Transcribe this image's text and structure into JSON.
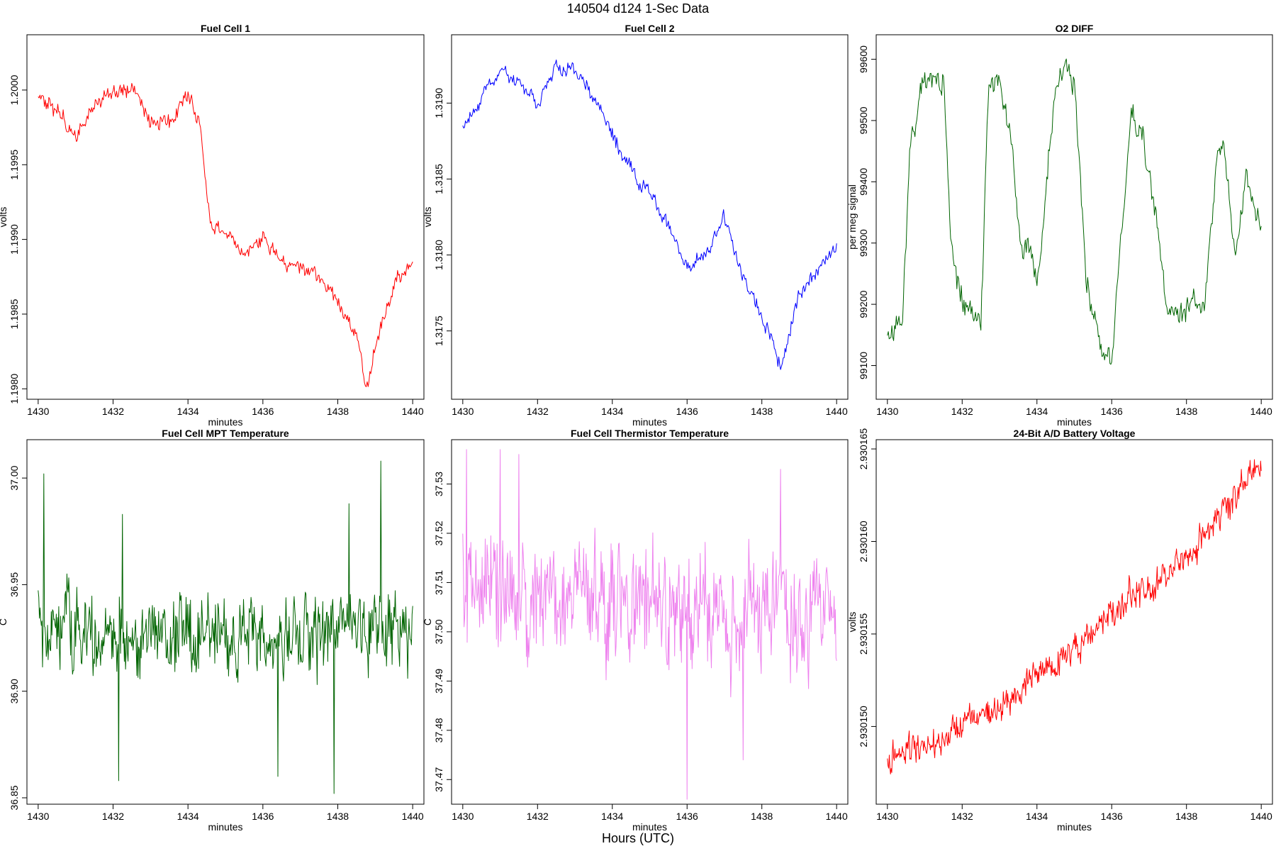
{
  "figure": {
    "title": "140504   d124   1-Sec Data",
    "outer_xlabel": "Hours (UTC)"
  },
  "chart_data": [
    {
      "type": "line",
      "title": "Fuel Cell 1",
      "xlabel": "minutes",
      "ylabel": "volts",
      "color": "#ff0000",
      "xlim": [
        1429.7,
        1440.3
      ],
      "ylim": [
        1.19793,
        1.20037
      ],
      "xticks": [
        1430,
        1432,
        1434,
        1436,
        1438,
        1440
      ],
      "yticks": [
        1.198,
        1.1985,
        1.199,
        1.1995,
        1.2
      ],
      "ytick_decimals": 4,
      "series": [
        {
          "x": [
            1430,
            1430.5,
            1431,
            1431.5,
            1432,
            1432.5,
            1433,
            1433.5,
            1434,
            1434.3,
            1434.6,
            1435,
            1435.5,
            1436,
            1436.5,
            1437,
            1437.5,
            1438,
            1438.5,
            1438.8,
            1439,
            1439.5,
            1440
          ],
          "values": [
            1.19995,
            1.19985,
            1.1997,
            1.1999,
            1.19998,
            1.2,
            1.19978,
            1.1998,
            1.19997,
            1.1998,
            1.1991,
            1.19905,
            1.1989,
            1.199,
            1.19885,
            1.1988,
            1.19875,
            1.1986,
            1.19835,
            1.198,
            1.1983,
            1.1987,
            1.19885
          ],
          "noise": 5e-05,
          "steps": 420
        }
      ]
    },
    {
      "type": "line",
      "title": "Fuel Cell 2",
      "xlabel": "minutes",
      "ylabel": "volts",
      "color": "#0000ff",
      "xlim": [
        1429.7,
        1440.3
      ],
      "ylim": [
        1.31705,
        1.31945
      ],
      "xticks": [
        1430,
        1432,
        1434,
        1436,
        1438,
        1440
      ],
      "yticks": [
        1.3175,
        1.318,
        1.3185,
        1.319
      ],
      "ytick_decimals": 4,
      "series": [
        {
          "x": [
            1430,
            1430.5,
            1431,
            1431.5,
            1432,
            1432.5,
            1433,
            1433.5,
            1434,
            1434.5,
            1435,
            1435.5,
            1436,
            1436.5,
            1437,
            1437.5,
            1438,
            1438.5,
            1439,
            1439.5,
            1440
          ],
          "values": [
            1.31885,
            1.31905,
            1.3192,
            1.31915,
            1.319,
            1.31925,
            1.3192,
            1.31905,
            1.3188,
            1.31855,
            1.3184,
            1.3182,
            1.3179,
            1.318,
            1.31825,
            1.31785,
            1.3176,
            1.31725,
            1.31775,
            1.3179,
            1.31805
          ],
          "noise": 5e-05,
          "steps": 420
        }
      ]
    },
    {
      "type": "line",
      "title": "O2 DIFF",
      "xlabel": "minutes",
      "ylabel": "per meg signal",
      "color": "#006400",
      "xlim": [
        1429.7,
        1440.3
      ],
      "ylim": [
        99045,
        99640
      ],
      "xticks": [
        1430,
        1432,
        1434,
        1436,
        1438,
        1440
      ],
      "yticks": [
        99100,
        99200,
        99300,
        99400,
        99500,
        99600
      ],
      "ytick_decimals": 0,
      "series": [
        {
          "x": [
            1430,
            1430.4,
            1430.6,
            1431,
            1431.5,
            1431.7,
            1432,
            1432.5,
            1432.7,
            1433,
            1433.3,
            1433.6,
            1433.8,
            1434,
            1434.5,
            1434.7,
            1435,
            1435.3,
            1435.5,
            1435.8,
            1436,
            1436.5,
            1436.8,
            1437,
            1437.5,
            1437.8,
            1438,
            1438.5,
            1438.8,
            1439,
            1439.3,
            1439.6,
            1439.8,
            1440
          ],
          "values": [
            99150,
            99170,
            99450,
            99570,
            99560,
            99300,
            99200,
            99170,
            99550,
            99560,
            99480,
            99280,
            99290,
            99220,
            99560,
            99590,
            99560,
            99250,
            99180,
            99110,
            99110,
            99500,
            99480,
            99420,
            99200,
            99170,
            99200,
            99210,
            99440,
            99460,
            99280,
            99420,
            99360,
            99330
          ],
          "noise": 20,
          "steps": 420
        }
      ]
    },
    {
      "type": "line",
      "title": "Fuel Cell MPT Temperature",
      "xlabel": "minutes",
      "ylabel": "C",
      "color": "#006400",
      "xlim": [
        1429.7,
        1440.3
      ],
      "ylim": [
        36.847,
        37.018
      ],
      "xticks": [
        1430,
        1432,
        1434,
        1436,
        1438,
        1440
      ],
      "yticks": [
        36.85,
        36.9,
        36.95,
        37.0
      ],
      "ytick_decimals": 2,
      "series": [
        {
          "x": [
            1430,
            1440
          ],
          "values": [
            36.928,
            36.928
          ],
          "noise": 0.018,
          "steps": 600,
          "spikes": [
            [
              1430.15,
              37.002
            ],
            [
              1432.15,
              36.858
            ],
            [
              1432.25,
              36.983
            ],
            [
              1436.4,
              36.86
            ],
            [
              1437.9,
              36.852
            ],
            [
              1438.3,
              36.988
            ],
            [
              1439.15,
              37.008
            ],
            [
              1440,
              36.94
            ]
          ]
        }
      ]
    },
    {
      "type": "line",
      "title": "Fuel Cell Thermistor Temperature",
      "xlabel": "minutes",
      "ylabel": "C",
      "color": "#ee82ee",
      "xlim": [
        1429.7,
        1440.3
      ],
      "ylim": [
        37.465,
        37.539
      ],
      "xticks": [
        1430,
        1432,
        1434,
        1436,
        1438,
        1440
      ],
      "yticks": [
        37.47,
        37.48,
        37.49,
        37.5,
        37.51,
        37.52,
        37.53
      ],
      "ytick_decimals": 2,
      "series": [
        {
          "x": [
            1430,
            1440
          ],
          "values": [
            37.509,
            37.503
          ],
          "noise": 0.011,
          "steps": 600,
          "spikes": [
            [
              1430.1,
              37.537
            ],
            [
              1431.0,
              37.537
            ],
            [
              1431.5,
              37.536
            ],
            [
              1436.0,
              37.466
            ],
            [
              1437.5,
              37.474
            ],
            [
              1438.5,
              37.533
            ]
          ]
        }
      ]
    },
    {
      "type": "line",
      "title": "24-Bit A/D Battery Voltage",
      "xlabel": "minutes",
      "ylabel": "volts",
      "color": "#ff0000",
      "xlim": [
        1429.7,
        1440.3
      ],
      "ylim": [
        2.9301458,
        2.9301655
      ],
      "xticks": [
        1430,
        1432,
        1434,
        1436,
        1438,
        1440
      ],
      "yticks": [
        2.93015,
        2.930155,
        2.93016,
        2.930165
      ],
      "ytick_decimals": 6,
      "series": [
        {
          "x": [
            1430,
            1430.5,
            1431,
            1431.5,
            1432,
            1433,
            1434,
            1435,
            1436,
            1437,
            1438,
            1439,
            1440
          ],
          "values": [
            2.9301485,
            2.9301487,
            2.9301488,
            2.9301492,
            2.9301502,
            2.930151,
            2.9301528,
            2.930154,
            2.9301563,
            2.9301575,
            2.930159,
            2.930162,
            2.930164
          ],
          "noise": 8e-07,
          "steps": 600
        }
      ]
    }
  ]
}
